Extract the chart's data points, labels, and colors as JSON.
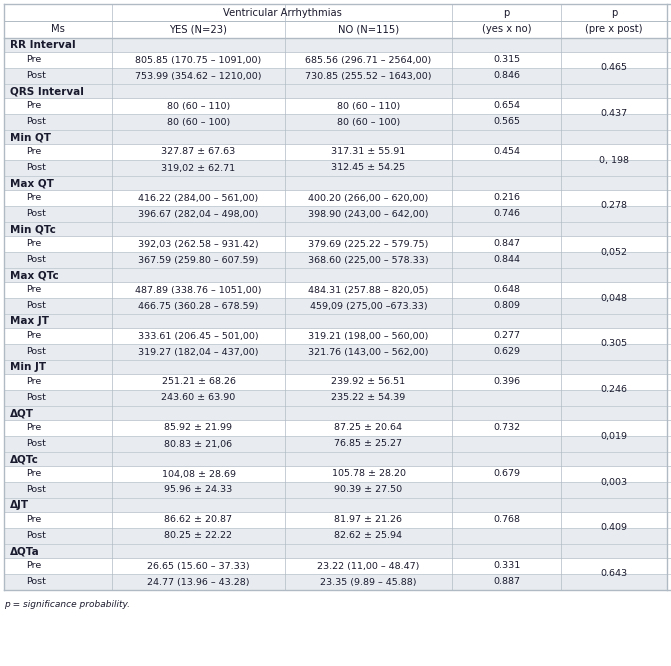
{
  "title": "Ventricular Arrhythmias",
  "rows": [
    {
      "type": "section",
      "label": "RR Interval"
    },
    {
      "type": "data",
      "label": "Pre",
      "yes": "805.85 (170.75 – 1091,00)",
      "no": "685.56 (296.71 – 2564,00)",
      "p_yes_no": "0.315",
      "p_pre_post": "0.465"
    },
    {
      "type": "data",
      "label": "Post",
      "yes": "753.99 (354.62 – 1210,00)",
      "no": "730.85 (255.52 – 1643,00)",
      "p_yes_no": "0.846",
      "p_pre_post": ""
    },
    {
      "type": "section",
      "label": "QRS Interval"
    },
    {
      "type": "data",
      "label": "Pre",
      "yes": "80 (60 – 110)",
      "no": "80 (60 – 110)",
      "p_yes_no": "0.654",
      "p_pre_post": "0.437"
    },
    {
      "type": "data",
      "label": "Post",
      "yes": "80 (60 – 100)",
      "no": "80 (60 – 100)",
      "p_yes_no": "0.565",
      "p_pre_post": ""
    },
    {
      "type": "section",
      "label": "Min QT"
    },
    {
      "type": "data",
      "label": "Pre",
      "yes": "327.87 ± 67.63",
      "no": "317.31 ± 55.91",
      "p_yes_no": "0.454",
      "p_pre_post": "0, 198"
    },
    {
      "type": "data",
      "label": "Post",
      "yes": "319,02 ± 62.71",
      "no": "312.45 ± 54.25",
      "p_yes_no": "",
      "p_pre_post": ""
    },
    {
      "type": "section",
      "label": "Max QT"
    },
    {
      "type": "data",
      "label": "Pre",
      "yes": "416.22 (284,00 – 561,00)",
      "no": "400.20 (266,00 – 620,00)",
      "p_yes_no": "0.216",
      "p_pre_post": "0.278"
    },
    {
      "type": "data",
      "label": "Post",
      "yes": "396.67 (282,04 – 498,00)",
      "no": "398.90 (243,00 – 642,00)",
      "p_yes_no": "0.746",
      "p_pre_post": ""
    },
    {
      "type": "section",
      "label": "Min QTc"
    },
    {
      "type": "data",
      "label": "Pre",
      "yes": "392,03 (262.58 – 931.42)",
      "no": "379.69 (225.22 – 579.75)",
      "p_yes_no": "0.847",
      "p_pre_post": "0,052"
    },
    {
      "type": "data",
      "label": "Post",
      "yes": "367.59 (259.80 – 607.59)",
      "no": "368.60 (225,00 – 578.33)",
      "p_yes_no": "0.844",
      "p_pre_post": ""
    },
    {
      "type": "section",
      "label": "Max QTc"
    },
    {
      "type": "data",
      "label": "Pre",
      "yes": "487.89 (338.76 – 1051,00)",
      "no": "484.31 (257.88 – 820,05)",
      "p_yes_no": "0.648",
      "p_pre_post": "0,048"
    },
    {
      "type": "data",
      "label": "Post",
      "yes": "466.75 (360.28 – 678.59)",
      "no": "459,09 (275,00 –673.33)",
      "p_yes_no": "0.809",
      "p_pre_post": ""
    },
    {
      "type": "section",
      "label": "Max JT"
    },
    {
      "type": "data",
      "label": "Pre",
      "yes": "333.61 (206.45 – 501,00)",
      "no": "319.21 (198,00 – 560,00)",
      "p_yes_no": "0.277",
      "p_pre_post": "0.305"
    },
    {
      "type": "data",
      "label": "Post",
      "yes": "319.27 (182,04 – 437,00)",
      "no": "321.76 (143,00 – 562,00)",
      "p_yes_no": "0.629",
      "p_pre_post": ""
    },
    {
      "type": "section",
      "label": "Min JT"
    },
    {
      "type": "data",
      "label": "Pre",
      "yes": "251.21 ± 68.26",
      "no": "239.92 ± 56.51",
      "p_yes_no": "0.396",
      "p_pre_post": "0.246"
    },
    {
      "type": "data",
      "label": "Post",
      "yes": "243.60 ± 63.90",
      "no": "235.22 ± 54.39",
      "p_yes_no": "",
      "p_pre_post": ""
    },
    {
      "type": "section",
      "label": "ΔQT"
    },
    {
      "type": "data",
      "label": "Pre",
      "yes": "85.92 ± 21.99",
      "no": "87.25 ± 20.64",
      "p_yes_no": "0.732",
      "p_pre_post": "0,019"
    },
    {
      "type": "data",
      "label": "Post",
      "yes": "80.83 ± 21,06",
      "no": "76.85 ± 25.27",
      "p_yes_no": "",
      "p_pre_post": ""
    },
    {
      "type": "section",
      "label": "ΔQTc"
    },
    {
      "type": "data",
      "label": "Pre",
      "yes": "104,08 ± 28.69",
      "no": "105.78 ± 28.20",
      "p_yes_no": "0.679",
      "p_pre_post": "0,003"
    },
    {
      "type": "data",
      "label": "Post",
      "yes": "95.96 ± 24.33",
      "no": "90.39 ± 27.50",
      "p_yes_no": "",
      "p_pre_post": ""
    },
    {
      "type": "section",
      "label": "ΔJT"
    },
    {
      "type": "data",
      "label": "Pre",
      "yes": "86.62 ± 20.87",
      "no": "81.97 ± 21.26",
      "p_yes_no": "0.768",
      "p_pre_post": "0.409"
    },
    {
      "type": "data",
      "label": "Post",
      "yes": "80.25 ± 22.22",
      "no": "82.62 ± 25.94",
      "p_yes_no": "",
      "p_pre_post": ""
    },
    {
      "type": "section",
      "label": "ΔQTa"
    },
    {
      "type": "data",
      "label": "Pre",
      "yes": "26.65 (15.60 – 37.33)",
      "no": "23.22 (11,00 – 48.47)",
      "p_yes_no": "0.331",
      "p_pre_post": "0.643"
    },
    {
      "type": "data",
      "label": "Post",
      "yes": "24.77 (13.96 – 43.28)",
      "no": "23.35 (9.89 – 45.88)",
      "p_yes_no": "0.887",
      "p_pre_post": ""
    }
  ],
  "footer": "p = significance probability.",
  "bg_light": "#e8ecf0",
  "bg_white": "#ffffff",
  "border_color": "#b0bac4",
  "text_dark": "#1a1a2e"
}
